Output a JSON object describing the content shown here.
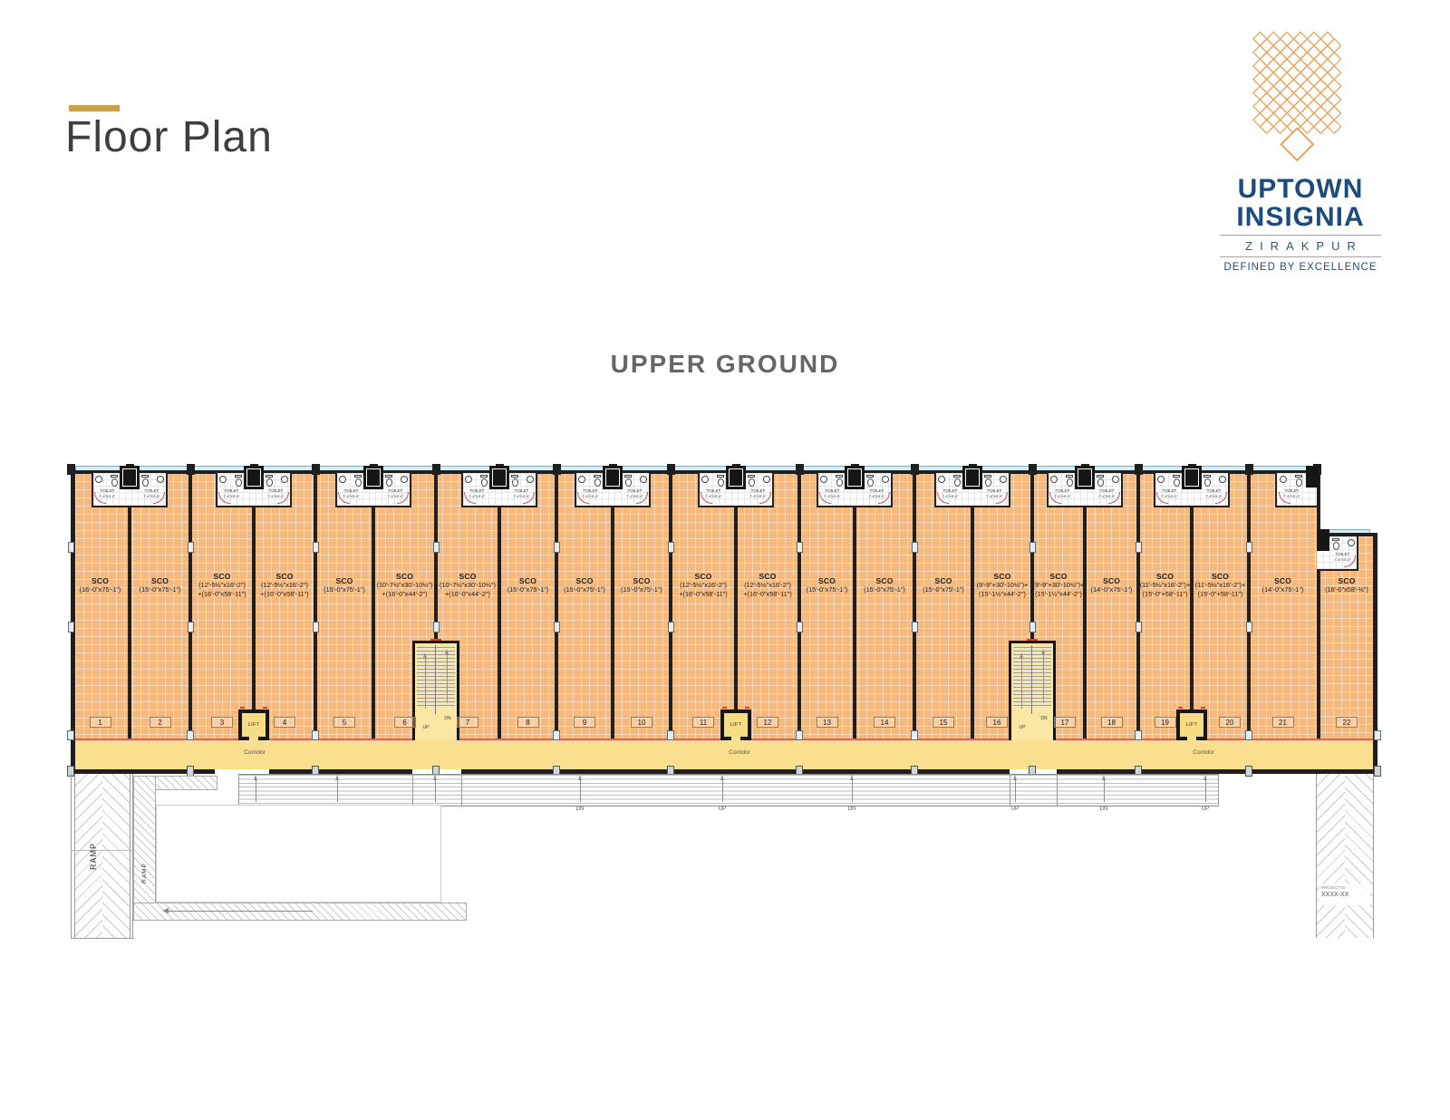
{
  "page": {
    "title": "Floor Plan",
    "floor_title": "UPPER GROUND"
  },
  "logo": {
    "name_line1": "UPTOWN",
    "name_line2": "INSIGNIA",
    "city": "ZIRAKPUR",
    "tagline": "DEFINED BY EXCELLENCE"
  },
  "plan": {
    "corridor_label": "Corridor",
    "lift_label": "LIFT",
    "ramp_label": "RAMP",
    "toilet_line1": "TOILET",
    "toilet_line2": "7'-6\"X5'-0\"",
    "up_label": "UP",
    "down_label": "DN",
    "project_ref_label": "PROJECT ID",
    "project_ref_value": "XXXX-XX",
    "units": [
      {
        "no": "1",
        "type": "SCO",
        "dims": [
          "(16'-0\"x75'-1\")"
        ]
      },
      {
        "no": "2",
        "type": "SCO",
        "dims": [
          "(15'-0\"x75'-1\")"
        ]
      },
      {
        "no": "3",
        "type": "SCO",
        "dims": [
          "(12'-5½\"x16'-2\")",
          "+(16'-0\"x58'-11\")"
        ]
      },
      {
        "no": "4",
        "type": "SCO",
        "dims": [
          "(12'-5½\"x16'-2\")",
          "+(16'-0\"x58'-11\")"
        ]
      },
      {
        "no": "5",
        "type": "SCO",
        "dims": [
          "(15'-0\"x75'-1\")"
        ]
      },
      {
        "no": "6",
        "type": "SCO",
        "dims": [
          "(10'-7½\"x30'-10½\")",
          "+(16'-0\"x44'-2\")"
        ]
      },
      {
        "no": "7",
        "type": "SCO",
        "dims": [
          "(10'-7½\"x30'-10½\")",
          "+(16'-0\"x44'-2\")"
        ]
      },
      {
        "no": "8",
        "type": "SCO",
        "dims": [
          "(15'-0\"x75'-1\")"
        ]
      },
      {
        "no": "9",
        "type": "SCO",
        "dims": [
          "(15'-0\"x75'-1\")"
        ]
      },
      {
        "no": "10",
        "type": "SCO",
        "dims": [
          "(15'-0\"x75'-1\")"
        ]
      },
      {
        "no": "11",
        "type": "SCO",
        "dims": [
          "(12'-5½\"x16'-2\")",
          "+(16'-0\"x58'-11\")"
        ]
      },
      {
        "no": "12",
        "type": "SCO",
        "dims": [
          "(12'-5½\"x16'-2\")",
          "+(16'-0\"x58'-11\")"
        ]
      },
      {
        "no": "13",
        "type": "SCO",
        "dims": [
          "(15'-0\"x75'-1\")"
        ]
      },
      {
        "no": "14",
        "type": "SCO",
        "dims": [
          "(15'-0\"x75'-1\")"
        ]
      },
      {
        "no": "15",
        "type": "SCO",
        "dims": [
          "(15'-0\"x75'-1\")"
        ]
      },
      {
        "no": "16",
        "type": "SCO",
        "dims": [
          "(9'-9\"+30'-10½\")+",
          "(15'-1½\"x44'-2\")"
        ]
      },
      {
        "no": "17",
        "type": "SCO",
        "dims": [
          "(9'-9\"+30'-10½\")+",
          "(15'-1½\"x44'-2\")"
        ]
      },
      {
        "no": "18",
        "type": "SCO",
        "dims": [
          "(14'-0\"x75'-1\")"
        ]
      },
      {
        "no": "19",
        "type": "SCO",
        "dims": [
          "(11'-5½\"x16'-2\")+",
          "(15'-0\"+58'-11\")"
        ]
      },
      {
        "no": "20",
        "type": "SCO",
        "dims": [
          "(11'-5½\"x16'-2\")+",
          "(15'-0\"+58'-11\")"
        ]
      },
      {
        "no": "21",
        "type": "SCO",
        "dims": [
          "(14'-0\"x75'-1\")"
        ]
      },
      {
        "no": "22",
        "type": "SCO",
        "dims": [
          "(16'-0\"x58'-½\")"
        ]
      }
    ],
    "entrance_steps_arrows": [
      "UP",
      "DN",
      "UP",
      "DN",
      "UP",
      "DN",
      "UP",
      "DN",
      "UP"
    ]
  },
  "colors": {
    "accent_gold": "#C9A24B",
    "brand_blue": "#1C4C7E",
    "lattice_gold": "#E8A55E",
    "unit_fill": "#F5B87D",
    "corridor_fill": "#FADF8E",
    "stair_fill": "#FAE7A4",
    "lift_fill": "#F6DC82",
    "wall": "#1F1F1F",
    "window": "#D7ECF3",
    "door_arc": "#D05050"
  }
}
